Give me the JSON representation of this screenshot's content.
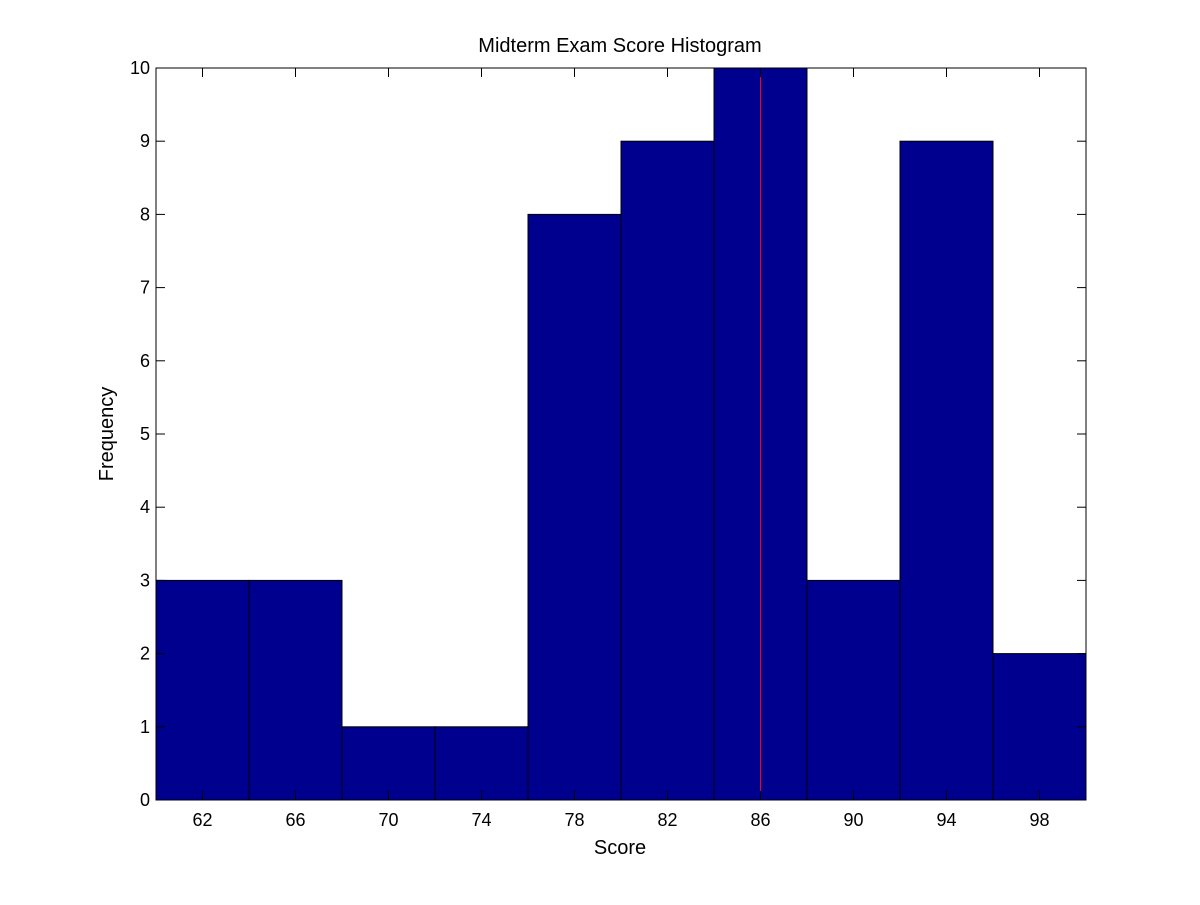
{
  "chart_data": {
    "type": "bar",
    "title": "Midterm Exam Score Histogram",
    "xlabel": "Score",
    "ylabel": "Frequency",
    "bins": [
      {
        "center": 62,
        "range": [
          60,
          64
        ],
        "count": 3
      },
      {
        "center": 66,
        "range": [
          64,
          68
        ],
        "count": 3
      },
      {
        "center": 70,
        "range": [
          68,
          72
        ],
        "count": 1
      },
      {
        "center": 74,
        "range": [
          72,
          76
        ],
        "count": 1
      },
      {
        "center": 78,
        "range": [
          76,
          80
        ],
        "count": 8
      },
      {
        "center": 82,
        "range": [
          80,
          84
        ],
        "count": 9
      },
      {
        "center": 86,
        "range": [
          84,
          88
        ],
        "count": 10
      },
      {
        "center": 90,
        "range": [
          88,
          92
        ],
        "count": 3
      },
      {
        "center": 94,
        "range": [
          92,
          96
        ],
        "count": 9
      },
      {
        "center": 98,
        "range": [
          96,
          100
        ],
        "count": 2
      }
    ],
    "xlim": [
      60,
      100
    ],
    "ylim": [
      0,
      10
    ],
    "xticks": [
      62,
      66,
      70,
      74,
      78,
      82,
      86,
      90,
      94,
      98
    ],
    "yticks": [
      0,
      1,
      2,
      3,
      4,
      5,
      6,
      7,
      8,
      9,
      10
    ],
    "reference_line": {
      "x": 86,
      "color": "#ff0000"
    },
    "bar_color": "#00008f",
    "edge_color": "#000000",
    "grid": false
  }
}
